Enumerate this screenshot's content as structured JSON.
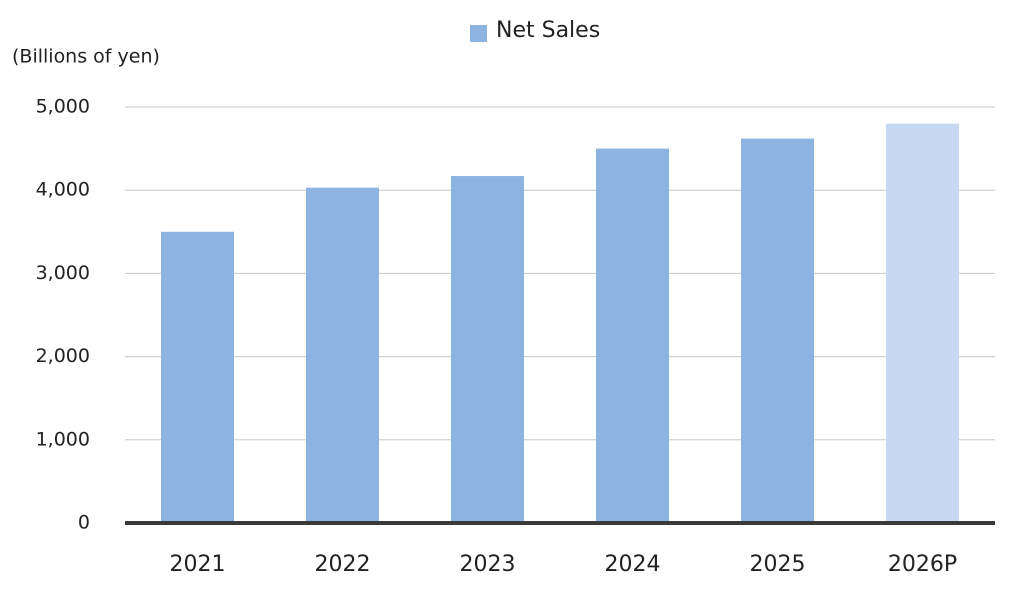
{
  "chart_data": {
    "type": "bar",
    "legend": "Net Sales",
    "y_axis_label": "(Billions of yen)",
    "categories": [
      "2021",
      "2022",
      "2023",
      "2024",
      "2025",
      "2026P"
    ],
    "values": [
      3500,
      4030,
      4170,
      4500,
      4620,
      4800
    ],
    "colors": [
      "#8db3e2",
      "#8db3e2",
      "#8db3e2",
      "#8db3e2",
      "#8db3e2",
      "#c6d9f1"
    ],
    "legend_color": "#8db3e2",
    "ylim": [
      0,
      5000
    ],
    "yticks": [
      0,
      {
        "value": 1000,
        "label": "1,000"
      },
      {
        "value": 2000,
        "label": "2,000"
      },
      {
        "value": 3000,
        "label": "3,000"
      },
      {
        "value": 4000,
        "label": "4,000"
      },
      {
        "value": 5000,
        "label": "5,000"
      }
    ],
    "grid": true
  }
}
